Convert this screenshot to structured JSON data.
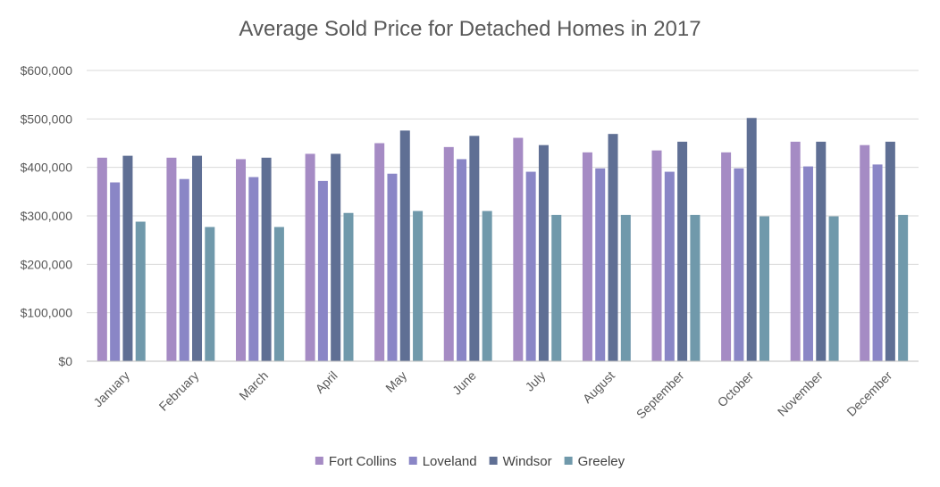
{
  "chart_data": {
    "type": "bar",
    "title": "Average Sold Price for Detached Homes in 2017",
    "xlabel": "",
    "ylabel": "",
    "ylim": [
      0,
      600000
    ],
    "yticks": [
      {
        "value": 0,
        "label": "$0"
      },
      {
        "value": 100000,
        "label": "$100,000"
      },
      {
        "value": 200000,
        "label": "$200,000"
      },
      {
        "value": 300000,
        "label": "$300,000"
      },
      {
        "value": 400000,
        "label": "$400,000"
      },
      {
        "value": 500000,
        "label": "$500,000"
      },
      {
        "value": 600000,
        "label": "$600,000"
      }
    ],
    "grid": true,
    "legend_position": "bottom",
    "categories": [
      "January",
      "February",
      "March",
      "April",
      "May",
      "June",
      "July",
      "August",
      "September",
      "October",
      "November",
      "December"
    ],
    "series": [
      {
        "name": "Fort Collins",
        "color": "#a58bc4",
        "values": [
          420000,
          420000,
          417000,
          428000,
          450000,
          442000,
          461000,
          431000,
          435000,
          431000,
          453000,
          446000
        ]
      },
      {
        "name": "Loveland",
        "color": "#8a86c6",
        "values": [
          369000,
          376000,
          380000,
          372000,
          387000,
          417000,
          391000,
          398000,
          391000,
          398000,
          402000,
          406000
        ]
      },
      {
        "name": "Windsor",
        "color": "#5f6f94",
        "values": [
          424000,
          424000,
          420000,
          428000,
          476000,
          465000,
          446000,
          469000,
          453000,
          502000,
          453000,
          453000
        ]
      },
      {
        "name": "Greeley",
        "color": "#7099ab",
        "values": [
          288000,
          277000,
          277000,
          306000,
          310000,
          310000,
          302000,
          302000,
          302000,
          299000,
          299000,
          302000
        ]
      }
    ]
  }
}
